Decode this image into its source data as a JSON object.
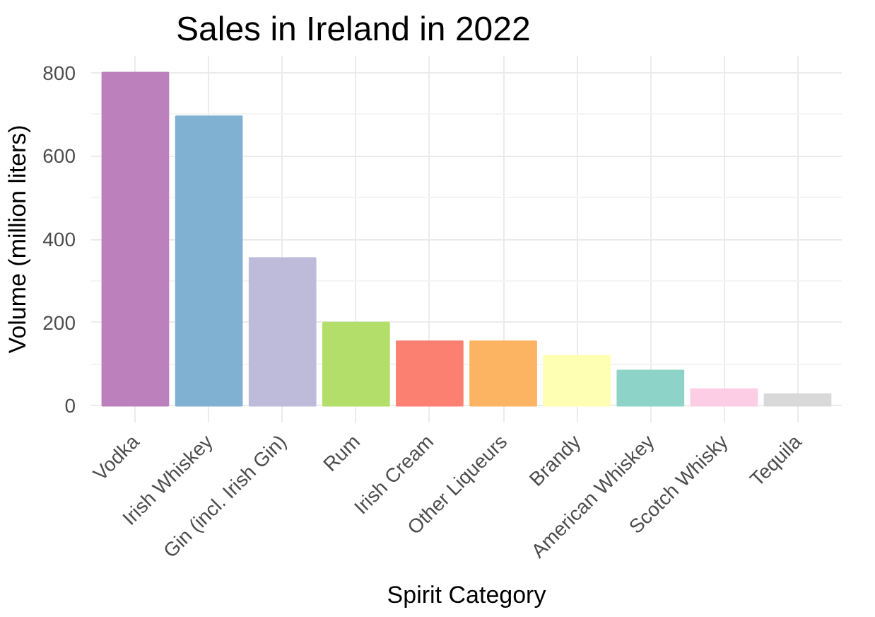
{
  "chart_data": {
    "type": "bar",
    "title": "Sales in Ireland in 2022",
    "xlabel": "Spirit Category",
    "ylabel": "Volume (million liters)",
    "categories": [
      "Vodka",
      "Irish Whiskey",
      "Gin (incl. Irish Gin)",
      "Rum",
      "Irish Cream",
      "Other Liqueurs",
      "Brandy",
      "American Whiskey",
      "Scotch Whisky",
      "Tequila"
    ],
    "values": [
      800,
      695,
      355,
      200,
      155,
      155,
      120,
      85,
      40,
      28
    ],
    "colors": [
      "#bc80bd",
      "#80b1d3",
      "#bebada",
      "#b3de69",
      "#fb8072",
      "#fdb462",
      "#ffffb3",
      "#8dd3c7",
      "#fccde5",
      "#d9d9d9"
    ],
    "ylim": [
      -40,
      840
    ],
    "yticks": [
      0,
      200,
      400,
      600,
      800
    ],
    "grid": true
  }
}
